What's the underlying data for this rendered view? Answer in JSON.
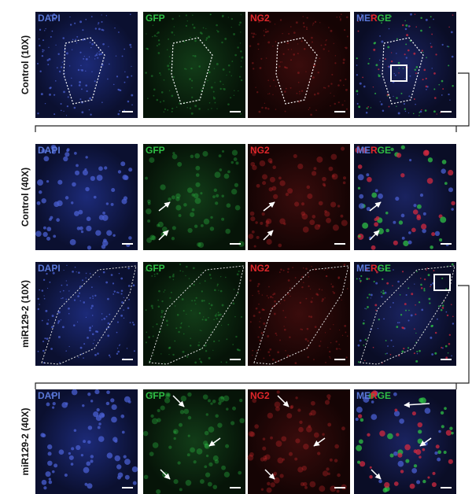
{
  "rows": [
    {
      "label": "Control (10X)",
      "panels": [
        "DAPI",
        "GFP",
        "NG2"
      ],
      "merge": [
        "ME",
        "R",
        "GE"
      ]
    },
    {
      "label": "Control (40X)",
      "panels": [
        "DAPI",
        "GFP",
        "NG2"
      ],
      "merge": [
        "ME",
        "R",
        "GE"
      ]
    },
    {
      "label": "miR129-2 (10X)",
      "panels": [
        "DAPI",
        "GFP",
        "NG2"
      ],
      "merge": [
        "ME",
        "R",
        "GE"
      ]
    },
    {
      "label": "miR129-2 (40X)",
      "panels": [
        "DAPI",
        "GFP",
        "NG2"
      ],
      "merge": [
        "ME",
        "R",
        "GE"
      ]
    }
  ]
}
